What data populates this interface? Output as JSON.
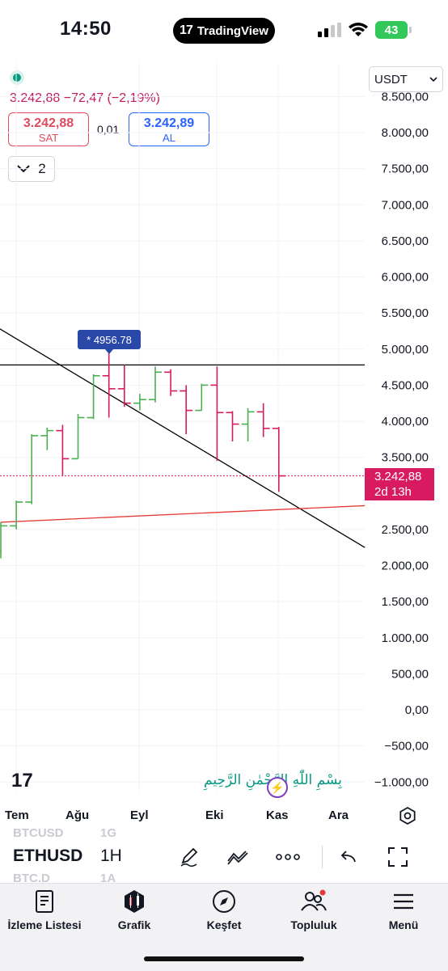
{
  "status_bar": {
    "time": "14:50",
    "app_badge": "TradingView",
    "battery": "43"
  },
  "quote": {
    "price_change": "3.242,88  −72,47 (−2,19%)",
    "sell_price": "3.242,88",
    "sell_label": "SAT",
    "spread": "0,01",
    "buy_price": "3.242,89",
    "buy_label": "AL",
    "collapse_count": "2"
  },
  "currency_select": {
    "value": "USDT"
  },
  "chart": {
    "y_labels": [
      "8.500,00",
      "8.000,00",
      "7.500,00",
      "7.000,00",
      "6.500,00",
      "6.000,00",
      "5.500,00",
      "5.000,00",
      "4.500,00",
      "4.000,00",
      "3.500,00",
      "2.500,00",
      "2.000,00",
      "1.500,00",
      "1.000,00",
      "500,00",
      "0,00",
      "−500,00",
      "−1.000,00"
    ],
    "last_price": "3.242,88",
    "countdown": "2d 13h",
    "peak_label": "* 4956.78",
    "watermark_text": "بِسْمِ اللّٰهِ الرَّحْمٰنِ الرَّحِيمِ",
    "time_labels": [
      "Tem",
      "Ağu",
      "Eyl",
      "Eki",
      "Kas",
      "Ara"
    ],
    "colors": {
      "up": "#4caf50",
      "down": "#d81b60",
      "trendline": "#000000",
      "support": "#e53935"
    }
  },
  "chart_data": {
    "type": "candlestick-ohlc-bars",
    "series_colors": {
      "up": "#4caf50",
      "down": "#d81b60"
    },
    "bars": [
      {
        "o": 2200,
        "h": 2600,
        "l": 2100,
        "c": 2550
      },
      {
        "o": 2550,
        "h": 2900,
        "l": 2500,
        "c": 2880
      },
      {
        "o": 2880,
        "h": 3820,
        "l": 2850,
        "c": 3800
      },
      {
        "o": 3800,
        "h": 3910,
        "l": 3600,
        "c": 3870
      },
      {
        "o": 3870,
        "h": 3950,
        "l": 3250,
        "c": 3480
      },
      {
        "o": 3480,
        "h": 4100,
        "l": 3480,
        "c": 4050
      },
      {
        "o": 4050,
        "h": 4650,
        "l": 4030,
        "c": 4630
      },
      {
        "o": 4630,
        "h": 4956.78,
        "l": 4050,
        "c": 4450
      },
      {
        "o": 4450,
        "h": 4780,
        "l": 4200,
        "c": 4250
      },
      {
        "o": 4250,
        "h": 4380,
        "l": 4150,
        "c": 4300
      },
      {
        "o": 4300,
        "h": 4760,
        "l": 4260,
        "c": 4680
      },
      {
        "o": 4680,
        "h": 4720,
        "l": 4350,
        "c": 4420
      },
      {
        "o": 4420,
        "h": 4500,
        "l": 3820,
        "c": 4150
      },
      {
        "o": 4150,
        "h": 4520,
        "l": 4150,
        "c": 4500
      },
      {
        "o": 4500,
        "h": 4760,
        "l": 3450,
        "c": 4120
      },
      {
        "o": 4120,
        "h": 4140,
        "l": 3720,
        "c": 3960
      },
      {
        "o": 3960,
        "h": 4180,
        "l": 3720,
        "c": 4130
      },
      {
        "o": 4130,
        "h": 4250,
        "l": 3780,
        "c": 3900
      },
      {
        "o": 3900,
        "h": 3920,
        "l": 3020,
        "c": 3242.88
      }
    ],
    "ylim": [
      -1000,
      8500
    ],
    "horizontal_line": 4780,
    "trendline": {
      "from": {
        "bar": -1,
        "value": 5400
      },
      "to": {
        "bar": 22,
        "value": 2250
      }
    },
    "support_line": {
      "from": {
        "bar": 0,
        "value": 2600
      },
      "to": {
        "bar": 22,
        "value": 2830
      }
    },
    "last_price_line": 3242.88,
    "x_labels": [
      "Tem",
      "Ağu",
      "Eyl",
      "Eki",
      "Kas",
      "Ara"
    ]
  },
  "toolbar": {
    "ghost_symbols": [
      "BTCUSD",
      "1G",
      "BTC.D",
      "1A"
    ],
    "symbol": "ETHUSD",
    "interval": "1H"
  },
  "bottom_nav": {
    "items": [
      {
        "label": "İzleme Listesi"
      },
      {
        "label": "Grafik"
      },
      {
        "label": "Keşfet"
      },
      {
        "label": "Topluluk"
      },
      {
        "label": "Menü"
      }
    ]
  }
}
